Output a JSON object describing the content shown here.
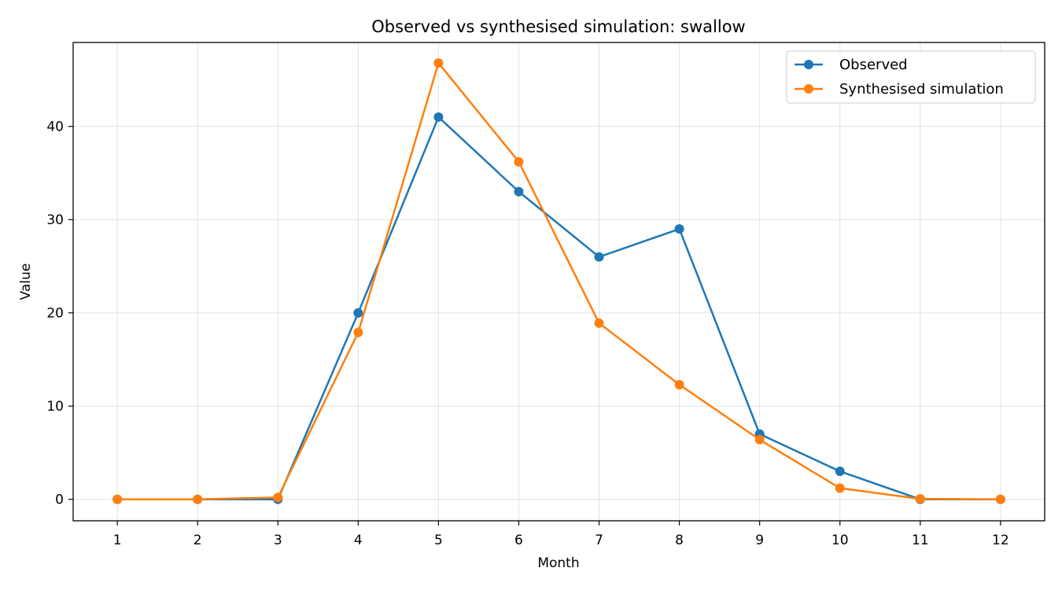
{
  "chart_data": {
    "type": "line",
    "title": "Observed vs synthesised simulation: swallow",
    "xlabel": "Month",
    "ylabel": "Value",
    "x": [
      1,
      2,
      3,
      4,
      5,
      6,
      7,
      8,
      9,
      10,
      11,
      12
    ],
    "xlim": [
      0.45,
      12.55
    ],
    "ylim": [
      -2.3,
      49.0
    ],
    "yticks": [
      0,
      10,
      20,
      30,
      40
    ],
    "grid": true,
    "legend_position": "top-right",
    "series": [
      {
        "name": "Observed",
        "color": "#1f77b4",
        "values": [
          0,
          0,
          0,
          20,
          41,
          33,
          26,
          29,
          7,
          3,
          0,
          0
        ]
      },
      {
        "name": "Synthesised simulation",
        "color": "#ff7f0e",
        "values": [
          0,
          0,
          0.2,
          17.9,
          46.8,
          36.2,
          18.9,
          12.3,
          6.4,
          1.2,
          0.05,
          0
        ]
      }
    ]
  }
}
